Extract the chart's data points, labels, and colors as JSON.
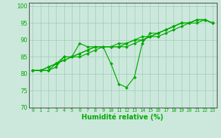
{
  "xlabel": "Humidité relative (%)",
  "background_color": "#cce8dc",
  "grid_color": "#99ccb3",
  "line_color": "#00aa00",
  "spine_color": "#555555",
  "xlim": [
    -0.5,
    23.5
  ],
  "ylim": [
    70,
    101
  ],
  "yticks": [
    70,
    75,
    80,
    85,
    90,
    95,
    100
  ],
  "xticks": [
    0,
    1,
    2,
    3,
    4,
    5,
    6,
    7,
    8,
    9,
    10,
    11,
    12,
    13,
    14,
    15,
    16,
    17,
    18,
    19,
    20,
    21,
    22,
    23
  ],
  "series": [
    [
      81,
      81,
      81,
      82,
      85,
      85,
      89,
      88,
      88,
      88,
      83,
      77,
      76,
      79,
      89,
      92,
      92,
      93,
      94,
      95,
      95,
      96,
      96,
      95
    ],
    [
      81,
      81,
      81,
      83,
      85,
      85,
      85,
      86,
      87,
      88,
      88,
      88,
      88,
      89,
      90,
      91,
      91,
      92,
      93,
      94,
      95,
      95,
      96,
      95
    ],
    [
      81,
      81,
      82,
      83,
      84,
      85,
      86,
      87,
      88,
      88,
      88,
      88,
      89,
      90,
      91,
      91,
      92,
      93,
      94,
      95,
      95,
      96,
      96,
      95
    ],
    [
      81,
      81,
      82,
      83,
      84,
      85,
      86,
      87,
      88,
      88,
      88,
      89,
      89,
      90,
      90,
      91,
      92,
      93,
      94,
      95,
      95,
      96,
      96,
      95
    ]
  ],
  "xlabel_fontsize": 7,
  "tick_fontsize": 5,
  "ytick_fontsize": 6,
  "linewidth": 0.9,
  "markersize": 2.2
}
